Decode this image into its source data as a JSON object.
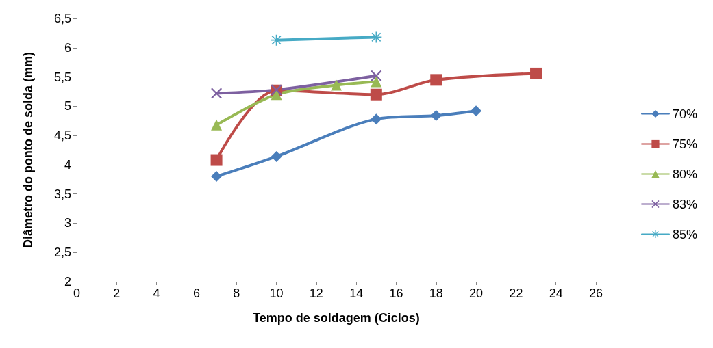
{
  "chart_data": {
    "type": "line",
    "xlabel": "Tempo de soldagem (Ciclos)",
    "ylabel": "Diâmetro do ponto de solda (mm)",
    "xlim": [
      0,
      26
    ],
    "xticks": [
      0,
      2,
      4,
      6,
      8,
      10,
      12,
      14,
      16,
      18,
      20,
      22,
      24,
      26
    ],
    "ylim": [
      2,
      6.5
    ],
    "yticks": [
      2,
      {
        "value": 2.5,
        "label": "2,5"
      },
      3,
      {
        "value": 3.5,
        "label": "3,5"
      },
      4,
      {
        "value": 4.5,
        "label": "4,5"
      },
      5,
      {
        "value": 5.5,
        "label": "5,5"
      },
      6,
      {
        "value": 6.5,
        "label": "6,5"
      }
    ],
    "grid": false,
    "legend": "right",
    "series": [
      {
        "name": "70%",
        "color": "#4a7ebb",
        "marker": "diamond",
        "x": [
          7,
          10,
          15,
          18,
          20
        ],
        "values": [
          3.8,
          4.14,
          4.78,
          4.84,
          4.92
        ]
      },
      {
        "name": "75%",
        "color": "#be4b48",
        "marker": "square",
        "x": [
          7,
          10,
          15,
          18,
          23
        ],
        "values": [
          4.08,
          5.27,
          5.2,
          5.45,
          5.56
        ]
      },
      {
        "name": "80%",
        "color": "#98b954",
        "marker": "triangle",
        "x": [
          7,
          10,
          13,
          15
        ],
        "values": [
          4.68,
          5.2,
          5.36,
          5.42
        ]
      },
      {
        "name": "83%",
        "color": "#7d60a0",
        "marker": "cross",
        "x": [
          7,
          10,
          15
        ],
        "values": [
          5.22,
          5.28,
          5.52
        ]
      },
      {
        "name": "85%",
        "color": "#46aac5",
        "marker": "star",
        "x": [
          10,
          15
        ],
        "values": [
          6.13,
          6.18
        ]
      }
    ]
  }
}
